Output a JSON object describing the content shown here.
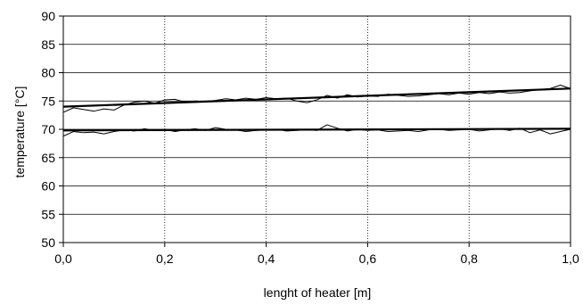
{
  "chart_data": {
    "type": "line",
    "title": "",
    "xlabel": "lenght of heater [m]",
    "ylabel": "temperature [°C]",
    "xlim": [
      0,
      1
    ],
    "ylim": [
      50,
      90
    ],
    "x_ticks": [
      0,
      0.2,
      0.4,
      0.6,
      0.8,
      1.0
    ],
    "x_tick_labels": [
      "0,0",
      "0,2",
      "0,4",
      "0,6",
      "0,8",
      "1,0"
    ],
    "y_ticks": [
      50,
      55,
      60,
      65,
      70,
      75,
      80,
      85,
      90
    ],
    "y_tick_labels": [
      "50",
      "55",
      "60",
      "65",
      "70",
      "75",
      "80",
      "85",
      "90"
    ],
    "grid": true,
    "series": [
      {
        "style": "measured",
        "x": [
          0,
          0.02,
          0.04,
          0.06,
          0.08,
          0.1,
          0.12,
          0.14,
          0.16,
          0.18,
          0.2,
          0.22,
          0.24,
          0.26,
          0.28,
          0.3,
          0.32,
          0.34,
          0.36,
          0.38,
          0.4,
          0.42,
          0.44,
          0.46,
          0.48,
          0.5,
          0.52,
          0.54,
          0.56,
          0.58,
          0.6,
          0.62,
          0.64,
          0.66,
          0.68,
          0.7,
          0.72,
          0.74,
          0.76,
          0.78,
          0.8,
          0.82,
          0.84,
          0.86,
          0.88,
          0.9,
          0.92,
          0.94,
          0.96,
          0.98,
          1.0
        ],
        "y": [
          73.0,
          73.8,
          73.5,
          73.2,
          73.6,
          73.4,
          74.3,
          74.8,
          75.0,
          74.6,
          75.2,
          75.3,
          74.8,
          75.0,
          74.9,
          75.1,
          75.4,
          75.2,
          75.5,
          75.3,
          75.6,
          75.4,
          75.5,
          75.0,
          74.7,
          75.2,
          76.0,
          75.5,
          76.1,
          75.7,
          75.9,
          75.8,
          76.2,
          76.0,
          75.8,
          75.9,
          76.1,
          76.3,
          76.1,
          76.4,
          76.2,
          76.5,
          76.3,
          76.6,
          76.4,
          76.5,
          76.8,
          77.0,
          77.2,
          77.8,
          77.2
        ]
      },
      {
        "style": "trend",
        "x": [
          0,
          1.0
        ],
        "y": [
          74.0,
          77.2
        ]
      },
      {
        "style": "measured",
        "x": [
          0,
          0.02,
          0.04,
          0.06,
          0.08,
          0.1,
          0.12,
          0.14,
          0.16,
          0.18,
          0.2,
          0.22,
          0.24,
          0.26,
          0.28,
          0.3,
          0.32,
          0.34,
          0.36,
          0.38,
          0.4,
          0.42,
          0.44,
          0.46,
          0.48,
          0.5,
          0.52,
          0.54,
          0.56,
          0.58,
          0.6,
          0.62,
          0.64,
          0.66,
          0.68,
          0.7,
          0.72,
          0.74,
          0.76,
          0.78,
          0.8,
          0.82,
          0.84,
          0.86,
          0.88,
          0.9,
          0.92,
          0.94,
          0.96,
          0.98,
          1.0
        ],
        "y": [
          68.8,
          69.6,
          69.4,
          69.5,
          69.2,
          69.6,
          69.9,
          69.7,
          70.1,
          69.8,
          70.0,
          69.6,
          69.9,
          70.1,
          69.8,
          70.3,
          70.0,
          69.9,
          69.6,
          69.8,
          69.9,
          70.0,
          69.7,
          69.8,
          69.9,
          69.8,
          70.8,
          70.2,
          69.7,
          70.0,
          69.8,
          69.9,
          69.6,
          69.7,
          69.8,
          69.6,
          69.9,
          70.0,
          69.8,
          69.9,
          70.0,
          69.7,
          69.9,
          70.1,
          69.8,
          70.2,
          69.4,
          69.9,
          69.2,
          69.6,
          70.0
        ]
      },
      {
        "style": "trend",
        "x": [
          0,
          1.0
        ],
        "y": [
          69.8,
          70.1
        ]
      }
    ]
  }
}
